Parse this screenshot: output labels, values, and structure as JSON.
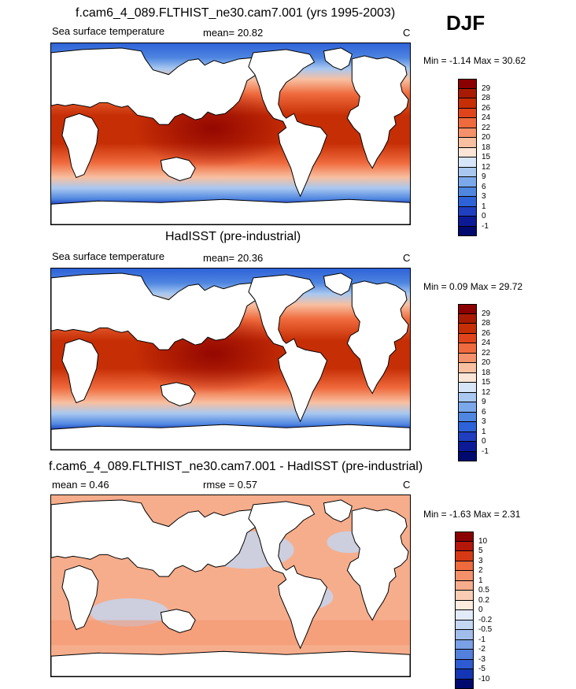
{
  "season": "DJF",
  "panels": [
    {
      "title": "f.cam6_4_089.FLTHIST_ne30.cam7.001 (yrs 1995-2003)",
      "left_label": "Sea surface temperature",
      "mean_text": "mean=  20.82",
      "rmse_text": "",
      "units": "C",
      "minmax": "Min =  -1.14 Max =  30.62",
      "colorbar": {
        "labels": [
          "29",
          "28",
          "26",
          "24",
          "22",
          "20",
          "18",
          "15",
          "12",
          "9",
          "6",
          "3",
          "1",
          "0",
          "-1"
        ],
        "colors": [
          "#8b0000",
          "#a81b02",
          "#c62e05",
          "#e0441a",
          "#ef6a3d",
          "#f4916a",
          "#f8bfa0",
          "#fbe5d6",
          "#d6e5f8",
          "#a8c8f0",
          "#7aa8ea",
          "#4f86e0",
          "#2e62d8",
          "#1f3fc0",
          "#0c1a96",
          "#000a6e"
        ]
      }
    },
    {
      "title": "HadISST (pre-industrial)",
      "left_label": "Sea surface temperature",
      "mean_text": "mean=  20.36",
      "rmse_text": "",
      "units": "C",
      "minmax": "Min =  0.09 Max =  29.72",
      "colorbar": {
        "labels": [
          "29",
          "28",
          "26",
          "24",
          "22",
          "20",
          "18",
          "15",
          "12",
          "9",
          "6",
          "3",
          "1",
          "0",
          "-1"
        ],
        "colors": [
          "#8b0000",
          "#a81b02",
          "#c62e05",
          "#e0441a",
          "#ef6a3d",
          "#f4916a",
          "#f8bfa0",
          "#fbe5d6",
          "#d6e5f8",
          "#a8c8f0",
          "#7aa8ea",
          "#4f86e0",
          "#2e62d8",
          "#1f3fc0",
          "#0c1a96",
          "#000a6e"
        ]
      }
    },
    {
      "title": "f.cam6_4_089.FLTHIST_ne30.cam7.001 - HadISST (pre-industrial)",
      "left_label": "mean =   0.46",
      "mean_text": "",
      "rmse_text": "rmse =   0.57",
      "units": "C",
      "minmax": "Min =  -1.63 Max =   2.31",
      "colorbar": {
        "labels": [
          "10",
          "5",
          "3",
          "2",
          "1",
          "0.5",
          "0.2",
          "0",
          "-0.2",
          "-0.5",
          "-1",
          "-2",
          "-3",
          "-5",
          "-10"
        ],
        "colors": [
          "#8b0000",
          "#b5160a",
          "#d63a15",
          "#ef6a3d",
          "#f4916a",
          "#f6ad8c",
          "#f9cdb4",
          "#fcebdf",
          "#e2ebf8",
          "#c3d6f2",
          "#a1bdec",
          "#7aa0e6",
          "#5380dd",
          "#2e5ad2",
          "#1436b4",
          "#000a6e"
        ]
      }
    }
  ]
}
